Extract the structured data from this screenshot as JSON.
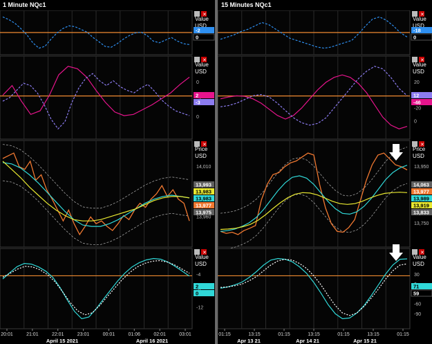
{
  "window": {
    "left_title": "1 Minute NQc1",
    "right_title": "15 Minutes NQc1"
  },
  "colors": {
    "bg": "#000000",
    "grid": "#2a2a2a",
    "orange": "#f08a30",
    "blue": "#2e8ff0",
    "magenta": "#e6148c",
    "lavender": "#8c7cf0",
    "cyan": "#30d8d8",
    "yellow": "#e8e830",
    "price": "#f07830",
    "band": "#a0a0a0"
  },
  "left": {
    "panes": [
      {
        "label": "Value",
        "unit": "USD",
        "badges": [
          {
            "text": "-2",
            "bg": "#2e8ff0"
          },
          {
            "text": "0",
            "bg": "#000000"
          }
        ],
        "ticks": []
      },
      {
        "label": "Value",
        "unit": "USD",
        "badges": [
          {
            "text": "2",
            "bg": "#e6148c"
          },
          {
            "text": "-3",
            "bg": "#8c7cf0"
          }
        ],
        "ticks": [
          "0",
          "-2",
          "0"
        ]
      },
      {
        "label": "Price",
        "unit": "USD",
        "badges": [
          {
            "text": "13,993",
            "bg": "#606060"
          },
          {
            "text": "13,983",
            "bg": "#e8e830"
          },
          {
            "text": "13,983",
            "bg": "#30d8d8"
          },
          {
            "text": "13,977",
            "bg": "#f07830"
          },
          {
            "text": "13,975",
            "bg": "#606060"
          }
        ],
        "ticks": [
          "14,010",
          "13,990",
          "13,960"
        ]
      },
      {
        "label": "Value",
        "unit": "USD",
        "badges": [
          {
            "text": "2",
            "bg": "#30d8d8"
          },
          {
            "text": "0",
            "bg": "#30d8d8"
          }
        ],
        "ticks": [
          "-4",
          "-8",
          "-12"
        ]
      }
    ],
    "xticks": [
      "20:01",
      "21:01",
      "22:01",
      "23:01",
      "00:01",
      "01:06",
      "02:01",
      "03:01"
    ],
    "dates": [
      "April 15 2021",
      "April 16 2021"
    ]
  },
  "right": {
    "panes": [
      {
        "label": "Value",
        "unit": "USD",
        "badges": [
          {
            "text": "-18",
            "bg": "#2e8ff0"
          },
          {
            "text": "0",
            "bg": "#000000"
          }
        ],
        "ticks": []
      },
      {
        "label": "Value",
        "unit": "USD",
        "badges": [
          {
            "text": "12",
            "bg": "#8c7cf0"
          },
          {
            "text": "-46",
            "bg": "#e6148c"
          }
        ],
        "ticks": [
          "20",
          "0",
          "-20",
          "0"
        ]
      },
      {
        "label": "Price",
        "unit": "USD",
        "badges": [
          {
            "text": "14,063",
            "bg": "#606060"
          },
          {
            "text": "13,977",
            "bg": "#f07830"
          },
          {
            "text": "13,989",
            "bg": "#30d8d8"
          },
          {
            "text": "13,919",
            "bg": "#e8e830"
          },
          {
            "text": "13,833",
            "bg": "#606060"
          }
        ],
        "ticks": [
          "13,950",
          "13,850",
          "13,800",
          "13,750"
        ]
      },
      {
        "label": "Value",
        "unit": "USD",
        "badges": [
          {
            "text": "71",
            "bg": "#30d8d8"
          },
          {
            "text": "59",
            "bg": "#000000"
          }
        ],
        "ticks": [
          "30",
          "0",
          "-30",
          "-60",
          "-90"
        ]
      }
    ],
    "xticks": [
      "01:15",
      "13:15",
      "01:15",
      "13:15",
      "01:15",
      "13:15",
      "01:15"
    ],
    "dates": [
      "Apr 13 21",
      "Apr 14 21",
      "Apr 15 21"
    ]
  },
  "chart_data": [
    {
      "type": "line",
      "name": "left-pane-1",
      "series": [
        {
          "name": "",
          "values": [
            1.5,
            1.2,
            0.8,
            0.2,
            -0.5,
            -1.4,
            -2.0,
            -1.8,
            -1.0,
            -0.3,
            0.2,
            0.5,
            0.4,
            0.1,
            -0.2,
            -0.8,
            -1.3,
            -1.8,
            -1.9,
            -1.5,
            -1.0,
            -0.6,
            -0.3,
            -0.2,
            -0.6,
            -1.2,
            -1.4,
            -1.1,
            -0.8,
            -1.2,
            -1.5,
            -1.6
          ]
        }
      ]
    },
    {
      "type": "line",
      "name": "left-pane-2",
      "series": [
        {
          "name": "",
          "values": [
            0,
            0.8,
            -0.5,
            -1.6,
            -1.3,
            0,
            1.7,
            2.4,
            2.2,
            1.5,
            0.4,
            -0.6,
            -1.4,
            -1.7,
            -1.6,
            -1.2,
            -0.8,
            -0.3,
            0.2,
            0.9,
            1.5
          ]
        },
        {
          "name": "",
          "values": [
            -0.5,
            -0.2,
            0.4,
            1.0,
            0.8,
            0.2,
            -0.8,
            -2.0,
            -2.8,
            -2.2,
            -0.6,
            0.6,
            1.4,
            1.8,
            1.2,
            0.8,
            1.2,
            0.7,
            0.4,
            0.2,
            0.6,
            0.9,
            0.3,
            -0.4,
            -0.9,
            -1.3,
            -1.5,
            -1.7
          ]
        }
      ]
    },
    {
      "type": "line",
      "name": "left-price",
      "series": [
        {
          "name": "",
          "values": [
            14008,
            14010,
            14012,
            14002,
            14000,
            14006,
            13992,
            13996,
            13985,
            13978,
            13970,
            13962,
            13970,
            13960,
            13952,
            13958,
            13965,
            13960,
            13962,
            13958,
            13955,
            13960,
            13966,
            13963,
            13970,
            13975,
            13972,
            13978,
            13982,
            13988,
            13980,
            13985,
            13978,
            13975,
            13962
          ]
        },
        {
          "name": "",
          "values": [
            14005,
            14004,
            14001,
            13996,
            13990,
            13983,
            13976,
            13969,
            13963,
            13959,
            13958,
            13958,
            13960,
            13963,
            13967,
            13971,
            13975,
            13978,
            13980,
            13981,
            13980,
            13979
          ]
        },
        {
          "name": "",
          "values": [
            14006,
            14000,
            13994,
            13987,
            13981,
            13975,
            13970,
            13966,
            13963,
            13962,
            13962,
            13963,
            13965,
            13967,
            13969,
            13971,
            13974,
            13977,
            13979,
            13980,
            13980,
            13979
          ]
        }
      ]
    },
    {
      "type": "line",
      "name": "left-pane-4",
      "series": [
        {
          "name": "",
          "values": [
            -1,
            0.8,
            2.5,
            3.4,
            3.2,
            2.4,
            1.2,
            -0.6,
            -3.5,
            -7.0,
            -10.2,
            -12.3,
            -11.8,
            -9.5,
            -6.8,
            -4.2,
            -1.6,
            0.6,
            2.4,
            3.6,
            4.4,
            4.8,
            4.6,
            3.8,
            2.6,
            1.2,
            -0.2
          ]
        },
        {
          "name": "",
          "values": [
            -0.5,
            0.6,
            1.8,
            2.6,
            2.4,
            1.6,
            0.2,
            -1.8,
            -4.6,
            -7.6,
            -10.0,
            -11.2,
            -10.6,
            -8.5,
            -6.0,
            -3.6,
            -1.2,
            0.8,
            2.4,
            3.4,
            4.0,
            4.2,
            3.8,
            3.0,
            1.8,
            0.6
          ]
        }
      ]
    },
    {
      "type": "line",
      "name": "right-pane-1",
      "series": [
        {
          "name": "",
          "values": [
            -0.3,
            -0.1,
            0.1,
            0.4,
            0.6,
            0.9,
            1.2,
            1.0,
            0.6,
            0.2,
            -0.2,
            -0.4,
            -0.6,
            -0.8,
            -1.0,
            -1.1,
            -1.0,
            -0.8,
            -0.6,
            -0.4,
            0.2,
            0.9,
            1.5,
            1.7,
            1.4,
            0.9,
            0.3,
            -0.1
          ]
        }
      ]
    },
    {
      "type": "line",
      "name": "right-pane-2",
      "series": [
        {
          "name": "",
          "values": [
            5,
            8,
            10,
            9,
            5,
            -2,
            -12,
            -22,
            -28,
            -22,
            -10,
            5,
            20,
            32,
            40,
            44,
            40,
            30,
            15,
            -5,
            -25,
            -38,
            -44,
            -40
          ]
        },
        {
          "name": "",
          "values": [
            -8,
            -6,
            -2,
            4,
            10,
            12,
            8,
            -2,
            -14,
            -26,
            -34,
            -38,
            -35,
            -26,
            -10,
            6,
            22,
            38,
            50,
            58,
            54,
            40,
            22,
            10
          ]
        }
      ]
    },
    {
      "type": "line",
      "name": "right-price",
      "series": [
        {
          "name": "",
          "values": [
            13820,
            13815,
            13818,
            13812,
            13822,
            13828,
            13835,
            13900,
            13940,
            13965,
            13970,
            13985,
            13995,
            14000,
            14010,
            14020,
            14015,
            13940,
            13880,
            13840,
            13820,
            13818,
            13830,
            13850,
            13900,
            13950,
            13990,
            14015,
            14020,
            14005,
            13990,
            13985,
            13977
          ]
        },
        {
          "name": "",
          "values": [
            13820,
            13822,
            13826,
            13833,
            13842,
            13856,
            13876,
            13900,
            13924,
            13944,
            13958,
            13962,
            13956,
            13940,
            13918,
            13896,
            13878,
            13866,
            13864,
            13870,
            13884,
            13904,
            13928,
            13952,
            13970,
            13982,
            13989
          ]
        },
        {
          "name": "",
          "values": [
            13825,
            13826,
            13828,
            13832,
            13838,
            13848,
            13862,
            13878,
            13893,
            13906,
            13915,
            13919,
            13918,
            13913,
            13905,
            13897,
            13891,
            13889,
            13891,
            13897,
            13905,
            13912,
            13917,
            13919,
            13920,
            13919
          ]
        }
      ]
    },
    {
      "type": "line",
      "name": "right-pane-4",
      "series": [
        {
          "name": "",
          "values": [
            0,
            3,
            8,
            15,
            26,
            40,
            56,
            68,
            72,
            70,
            64,
            52,
            36,
            14,
            -12,
            -40,
            -62,
            -74,
            -72,
            -60,
            -42,
            -18,
            8,
            34,
            56,
            70,
            71
          ]
        },
        {
          "name": "",
          "values": [
            2,
            3,
            6,
            10,
            18,
            28,
            42,
            56,
            66,
            70,
            68,
            60,
            48,
            30,
            8,
            -18,
            -42,
            -60,
            -66,
            -60,
            -44,
            -24,
            -2,
            22,
            42,
            56,
            59
          ]
        }
      ]
    }
  ]
}
